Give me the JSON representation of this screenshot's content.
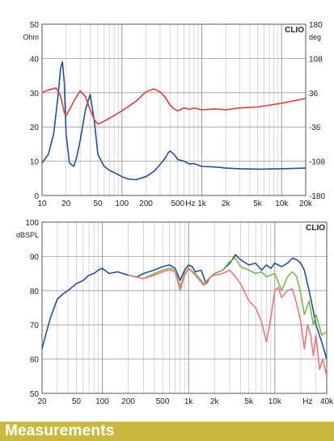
{
  "footer": {
    "title": "Measurements"
  },
  "colors": {
    "grid_major": "#9a9a9a",
    "grid_minor": "#c8c8c8",
    "background": "#ffffff",
    "blue": "#1f4fa0",
    "red": "#e23b3b",
    "green": "#79b84a",
    "pink": "#ee7777",
    "footer_bg": "#c9b93e"
  },
  "chart_data": [
    {
      "type": "line",
      "brand": "CLIO",
      "x_scale": "log",
      "xlim": [
        10,
        20000
      ],
      "x_tick_labels": [
        "10",
        "20",
        "50",
        "100",
        "200",
        "500",
        "Hz",
        "1k",
        "2k",
        "5k",
        "10k",
        "20k"
      ],
      "ylabel_left": "Ohm",
      "ylim_left": [
        0,
        50
      ],
      "y_ticks_left": [
        0,
        10,
        20,
        30,
        40,
        50
      ],
      "ylabel_right": "deg",
      "ylim_right": [
        -180,
        180
      ],
      "y_ticks_right": [
        -180,
        -108,
        -36,
        36,
        108,
        180
      ],
      "series": [
        {
          "color": "#1f4fa0",
          "axis": "left",
          "x": [
            10,
            12,
            14,
            16,
            17,
            18,
            19,
            20,
            22,
            25,
            27,
            30,
            35,
            40,
            45,
            50,
            60,
            70,
            80,
            100,
            120,
            150,
            200,
            250,
            300,
            350,
            380,
            400,
            450,
            500,
            600,
            700,
            800,
            1000,
            1500,
            2000,
            3000,
            5000,
            10000,
            20000
          ],
          "values": [
            9.5,
            12,
            18,
            30,
            37,
            39,
            33,
            18,
            9.5,
            8.5,
            11,
            16,
            25,
            29.5,
            22,
            12,
            8.5,
            7.3,
            6.7,
            5.5,
            4.8,
            4.6,
            5.5,
            7,
            9,
            11,
            12.5,
            13,
            12,
            10.5,
            10,
            9.2,
            9.3,
            8.5,
            8.3,
            8,
            7.8,
            7.7,
            7.8,
            8
          ]
        },
        {
          "color": "#e23b3b",
          "axis": "right",
          "x": [
            10,
            12,
            15,
            17,
            19,
            20,
            22,
            25,
            30,
            35,
            40,
            45,
            50,
            60,
            80,
            100,
            150,
            200,
            250,
            300,
            350,
            400,
            450,
            500,
            600,
            700,
            800,
            1000,
            1500,
            2000,
            3000,
            5000,
            10000,
            20000
          ],
          "values": [
            36,
            42,
            46,
            30,
            -6,
            -12,
            0,
            18,
            40,
            28,
            0,
            -20,
            -30,
            -24,
            -12,
            -2,
            18,
            38,
            44,
            38,
            26,
            10,
            2,
            -2,
            4,
            1,
            4,
            0,
            2,
            0,
            4,
            6,
            14,
            24
          ]
        }
      ]
    },
    {
      "type": "line",
      "brand": "CLIO",
      "x_scale": "log",
      "xlim": [
        20,
        40000
      ],
      "x_tick_labels": [
        "20",
        "50",
        "100",
        "200",
        "500",
        "1k",
        "2k",
        "5k",
        "10k",
        "Hz",
        "40k"
      ],
      "ylabel": "dBSPL",
      "ylim": [
        50,
        100
      ],
      "y_ticks": [
        50,
        60,
        70,
        80,
        90,
        100
      ],
      "series": [
        {
          "color": "#1f4fa0",
          "x": [
            20,
            22,
            25,
            30,
            35,
            40,
            50,
            60,
            70,
            80,
            90,
            100,
            120,
            150,
            200,
            250,
            300,
            400,
            500,
            600,
            700,
            800,
            900,
            1000,
            1100,
            1200,
            1400,
            1600,
            1800,
            2000,
            2500,
            3000,
            3500,
            4000,
            5000,
            6000,
            7000,
            8000,
            9000,
            10000,
            12000,
            14000,
            16000,
            18000,
            20000,
            22000,
            25000,
            28000,
            30000,
            35000,
            40000
          ],
          "values": [
            63,
            67,
            72,
            77.5,
            79,
            80,
            82,
            83,
            84.5,
            85,
            86,
            86.5,
            85,
            85.5,
            84.5,
            84,
            85,
            86,
            87,
            87.5,
            86.5,
            83,
            86,
            87.5,
            87,
            85.5,
            86,
            82,
            84,
            85,
            86,
            88,
            90.5,
            89,
            87.5,
            88,
            86,
            87.5,
            86.5,
            88,
            87,
            88,
            89.5,
            89,
            88,
            86,
            80,
            74,
            70,
            65,
            60
          ]
        },
        {
          "color": "#79b84a",
          "x": [
            200,
            300,
            400,
            500,
            600,
            700,
            800,
            900,
            1000,
            1200,
            1500,
            1800,
            2000,
            2500,
            3000,
            3500,
            4000,
            5000,
            6000,
            7000,
            8000,
            10000,
            12000,
            14000,
            16000,
            18000,
            20000,
            22000,
            25000,
            28000,
            30000,
            35000,
            40000
          ],
          "values": [
            84.5,
            83.5,
            85,
            86,
            86.5,
            86,
            81,
            85,
            86.5,
            85,
            82,
            84,
            85,
            86,
            88.5,
            89.5,
            87,
            86,
            85,
            85.5,
            84,
            85,
            80,
            84,
            85.5,
            84,
            79,
            73,
            77,
            70,
            73,
            67,
            68
          ]
        },
        {
          "color": "#ee7777",
          "x": [
            200,
            300,
            400,
            500,
            600,
            700,
            800,
            900,
            1000,
            1200,
            1500,
            1800,
            2000,
            2500,
            3000,
            3500,
            4000,
            5000,
            6000,
            7000,
            8000,
            9000,
            10000,
            11000,
            12000,
            14000,
            16000,
            18000,
            20000,
            22000,
            24000,
            26000,
            28000,
            30000,
            33000,
            36000,
            40000
          ],
          "values": [
            84.5,
            83.5,
            84.5,
            85.5,
            86,
            85.5,
            80,
            84.5,
            86.5,
            84.5,
            81.5,
            84,
            84.5,
            85,
            86,
            84,
            82,
            77,
            75,
            71,
            65,
            72,
            80,
            81,
            78,
            80,
            80.5,
            76,
            71,
            63,
            70,
            67,
            61,
            67,
            57,
            60,
            55
          ]
        }
      ]
    }
  ]
}
